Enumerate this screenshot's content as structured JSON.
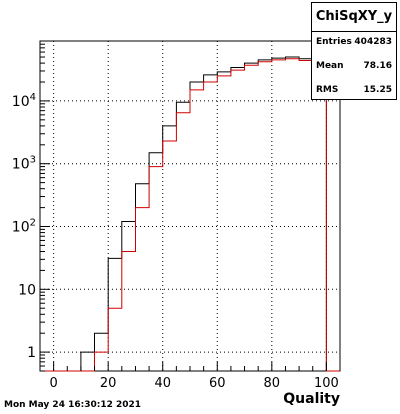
{
  "chart_data": {
    "type": "histogram",
    "title": "ChiSqXY_y",
    "xlabel": "Quality",
    "ylabel": "",
    "xlim": [
      -5,
      105
    ],
    "ylim": [
      0.5,
      90000
    ],
    "yscale": "log",
    "grid": true,
    "bin_edges": [
      -5,
      0,
      5,
      10,
      15,
      20,
      25,
      30,
      35,
      40,
      45,
      50,
      55,
      60,
      65,
      70,
      75,
      80,
      85,
      90,
      95,
      100,
      105
    ],
    "x_tick_labels": [
      "0",
      "20",
      "40",
      "60",
      "80",
      "100"
    ],
    "x_tick_values": [
      0,
      20,
      40,
      60,
      80,
      100
    ],
    "y_tick_labels": [
      {
        "base": "1",
        "exp": ""
      },
      {
        "base": "10",
        "exp": ""
      },
      {
        "base": "10",
        "exp": "2"
      },
      {
        "base": "10",
        "exp": "3"
      },
      {
        "base": "10",
        "exp": "4"
      }
    ],
    "y_tick_values": [
      1,
      10,
      100,
      1000,
      10000
    ],
    "series": [
      {
        "color": "#000000",
        "values": [
          0.5,
          0.5,
          0.5,
          1,
          2,
          31,
          120,
          480,
          1500,
          4000,
          9500,
          20000,
          26000,
          29000,
          34000,
          40000,
          45000,
          48000,
          50000,
          47000,
          36000,
          0.5
        ]
      },
      {
        "color": "#d00000",
        "values": [
          0.5,
          0.5,
          0.5,
          0.5,
          1,
          5,
          40,
          200,
          900,
          2300,
          6500,
          15000,
          20000,
          25000,
          31000,
          37000,
          42000,
          45000,
          47000,
          44000,
          34000,
          0.5
        ]
      }
    ],
    "stats": {
      "title": "ChiSqXY_y",
      "entries_label": "Entries",
      "entries_value": "404283",
      "mean_label": "Mean",
      "mean_value": "78.16",
      "rms_label": "RMS",
      "rms_value": "15.25"
    }
  },
  "timestamp": "Mon May 24 16:30:12 2021"
}
